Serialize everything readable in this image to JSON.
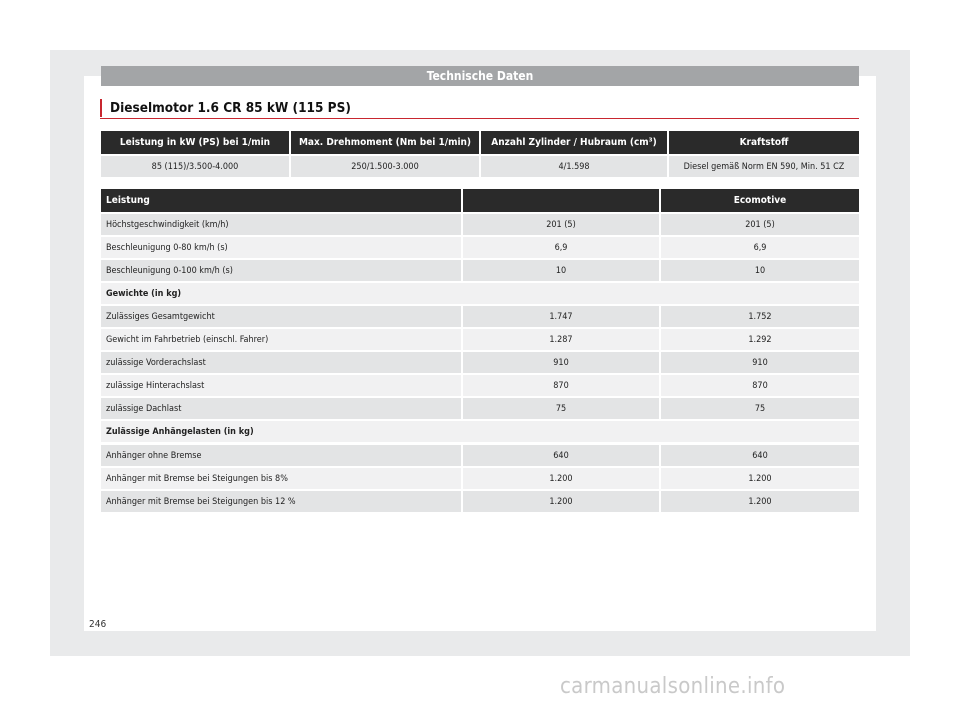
{
  "header": {
    "title": "Technische Daten"
  },
  "section_title": "Dieselmotor 1.6 CR 85 kW (115 PS)",
  "engine_table": {
    "headers": [
      "Leistung in kW (PS) bei 1/min",
      "Max. Drehmoment (Nm bei 1/min)",
      "Anzahl Zylinder / Hubraum (cm³)",
      "Kraftstoff"
    ],
    "row": [
      "85 (115)/3.500-4.000",
      "250/1.500-3.000",
      "4/1.598",
      "Diesel gemäß Norm EN 590, Min. 51 CZ"
    ]
  },
  "performance_table": {
    "headers": [
      "Leistung",
      "",
      "Ecomotive"
    ],
    "rows": [
      {
        "label": "Höchstgeschwindigkeit (km/h)",
        "v1": "201 (5)",
        "v2": "201 (5)"
      },
      {
        "label": "Beschleunigung 0-80 km/h (s)",
        "v1": "6,9",
        "v2": "6,9"
      },
      {
        "label": "Beschleunigung 0-100 km/h (s)",
        "v1": "10",
        "v2": "10"
      }
    ],
    "section_weights": "Gewichte (in kg)",
    "weight_rows": [
      {
        "label": "Zulässiges Gesamtgewicht",
        "v1": "1.747",
        "v2": "1.752"
      },
      {
        "label": "Gewicht im Fahrbetrieb (einschl. Fahrer)",
        "v1": "1.287",
        "v2": "1.292"
      },
      {
        "label": "zulässige Vorderachslast",
        "v1": "910",
        "v2": "910"
      },
      {
        "label": "zulässige Hinterachslast",
        "v1": "870",
        "v2": "870"
      },
      {
        "label": "zulässige Dachlast",
        "v1": "75",
        "v2": "75"
      }
    ],
    "section_trailer": "Zulässige Anhängelasten (in kg)",
    "trailer_rows": [
      {
        "label": "Anhänger ohne Bremse",
        "v1": "640",
        "v2": "640"
      },
      {
        "label": "Anhänger mit Bremse bei Steigungen bis 8%",
        "v1": "1.200",
        "v2": "1.200"
      },
      {
        "label": "Anhänger mit Bremse bei Steigungen bis 12 %",
        "v1": "1.200",
        "v2": "1.200"
      }
    ]
  },
  "page_number": "246",
  "watermark": "carmanualsonline.info"
}
